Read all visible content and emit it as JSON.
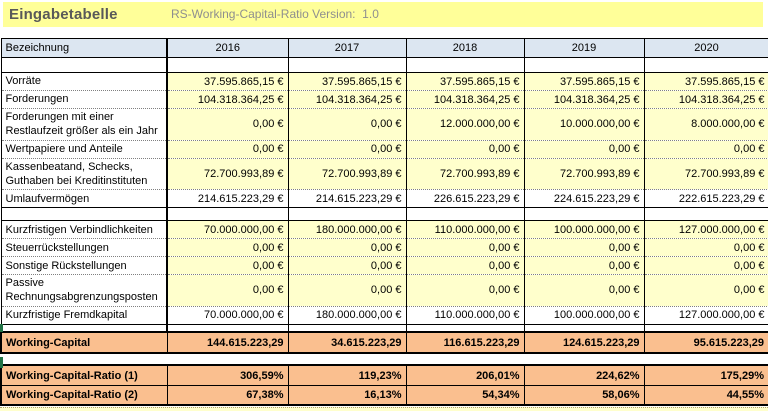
{
  "banner": {
    "title": "Eingabetabelle",
    "subtitle": "RS-Working-Capital-Ratio Version:  1.0"
  },
  "colors": {
    "banner_bg": "#ffff99",
    "header_bg": "#dce6f1",
    "input_cell_bg": "#ffffcc",
    "calculated_cell_bg": "#ffffff",
    "summary_bg": "#fabf8f",
    "marker_green": "#217346"
  },
  "table": {
    "header": {
      "label": "Bezeichnung",
      "years": [
        "2016",
        "2017",
        "2018",
        "2019",
        "2020"
      ]
    },
    "assets": {
      "rows": [
        {
          "label": "Vorräte",
          "values": [
            "37.595.865,15 €",
            "37.595.865,15 €",
            "37.595.865,15 €",
            "37.595.865,15 €",
            "37.595.865,15 €"
          ]
        },
        {
          "label": "Forderungen",
          "values": [
            "104.318.364,25 €",
            "104.318.364,25 €",
            "104.318.364,25 €",
            "104.318.364,25 €",
            "104.318.364,25 €"
          ]
        },
        {
          "label": "Forderungen mit einer Restlaufzeit größer als ein Jahr",
          "values": [
            "0,00 €",
            "0,00 €",
            "12.000.000,00 €",
            "10.000.000,00 €",
            "8.000.000,00 €"
          ]
        },
        {
          "label": "Wertpapiere und Anteile",
          "values": [
            "0,00 €",
            "0,00 €",
            "0,00 €",
            "0,00 €",
            "0,00 €"
          ]
        },
        {
          "label": "Kassenbeatand, Schecks, Guthaben bei Kreditinstituten",
          "values": [
            "72.700.993,89 €",
            "72.700.993,89 €",
            "72.700.993,89 €",
            "72.700.993,89 €",
            "72.700.993,89 €"
          ]
        },
        {
          "label": "Umlaufvermögen",
          "calc": true,
          "values": [
            "214.615.223,29 €",
            "214.615.223,29 €",
            "226.615.223,29 €",
            "224.615.223,29 €",
            "222.615.223,29 €"
          ]
        }
      ]
    },
    "liabilities": {
      "rows": [
        {
          "label": "Kurzfristigen Verbindlichkeiten",
          "values": [
            "70.000.000,00 €",
            "180.000.000,00 €",
            "110.000.000,00 €",
            "100.000.000,00 €",
            "127.000.000,00 €"
          ]
        },
        {
          "label": "Steuerrückstellungen",
          "values": [
            "0,00 €",
            "0,00 €",
            "0,00 €",
            "0,00 €",
            "0,00 €"
          ]
        },
        {
          "label": "Sonstige Rückstellungen",
          "values": [
            "0,00 €",
            "0,00 €",
            "0,00 €",
            "0,00 €",
            "0,00 €"
          ]
        },
        {
          "label": "Passive Rechnungsabgrenzungsposten",
          "values": [
            "0,00 €",
            "0,00 €",
            "0,00 €",
            "0,00 €",
            "0,00 €"
          ]
        },
        {
          "label": "Kurzfristige Fremdkapital",
          "calc": true,
          "values": [
            "70.000.000,00 €",
            "180.000.000,00 €",
            "110.000.000,00 €",
            "100.000.000,00 €",
            "127.000.000,00 €"
          ]
        }
      ]
    },
    "working_capital": {
      "rows": [
        {
          "label": "Working-Capital",
          "calc": true,
          "values": [
            "144.615.223,29",
            "34.615.223,29",
            "116.615.223,29",
            "124.615.223,29",
            "95.615.223,29"
          ]
        }
      ]
    },
    "ratios": {
      "rows": [
        {
          "label": "Working-Capital-Ratio (1)",
          "calc": true,
          "values": [
            "306,59%",
            "119,23%",
            "206,01%",
            "224,62%",
            "175,29%"
          ]
        },
        {
          "label": "Working-Capital-Ratio (2)",
          "calc": true,
          "values": [
            "67,38%",
            "16,13%",
            "54,34%",
            "58,06%",
            "44,55%"
          ]
        }
      ]
    }
  }
}
